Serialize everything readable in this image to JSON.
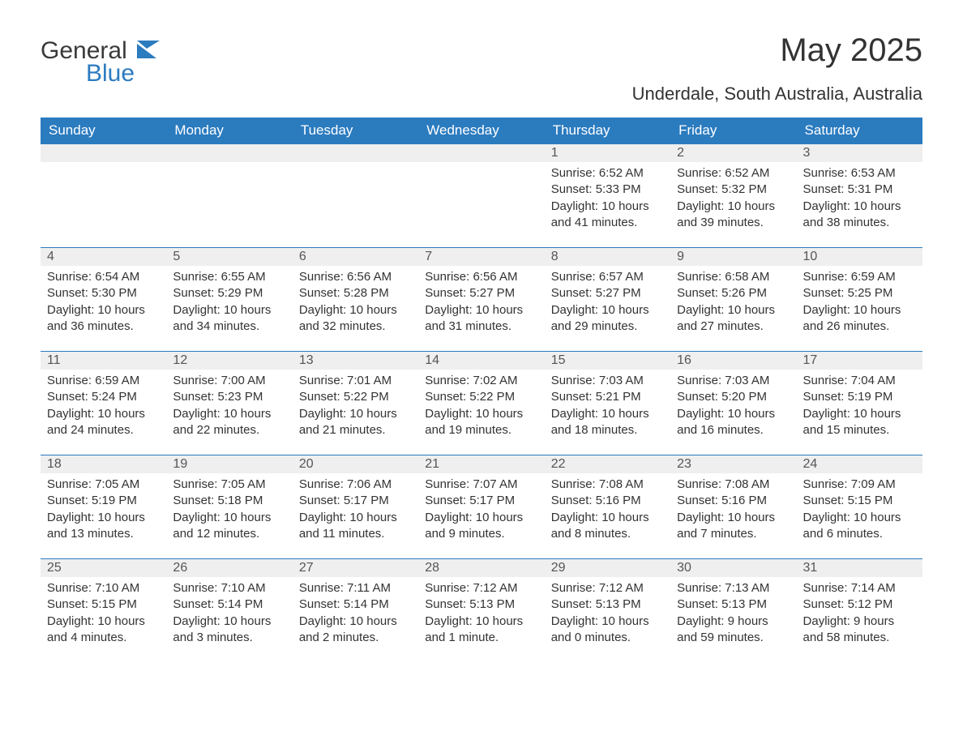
{
  "logo": {
    "text_general": "General",
    "text_blue": "Blue",
    "icon_color": "#2b7bbf"
  },
  "title": "May 2025",
  "location": "Underdale, South Australia, Australia",
  "header_bg": "#2b7bbf",
  "daynum_bg": "#efefef",
  "rule_color": "#2b7bbf",
  "weekdays": [
    "Sunday",
    "Monday",
    "Tuesday",
    "Wednesday",
    "Thursday",
    "Friday",
    "Saturday"
  ],
  "weeks": [
    [
      null,
      null,
      null,
      null,
      {
        "n": "1",
        "sunrise": "6:52 AM",
        "sunset": "5:33 PM",
        "daylight": "10 hours and 41 minutes."
      },
      {
        "n": "2",
        "sunrise": "6:52 AM",
        "sunset": "5:32 PM",
        "daylight": "10 hours and 39 minutes."
      },
      {
        "n": "3",
        "sunrise": "6:53 AM",
        "sunset": "5:31 PM",
        "daylight": "10 hours and 38 minutes."
      }
    ],
    [
      {
        "n": "4",
        "sunrise": "6:54 AM",
        "sunset": "5:30 PM",
        "daylight": "10 hours and 36 minutes."
      },
      {
        "n": "5",
        "sunrise": "6:55 AM",
        "sunset": "5:29 PM",
        "daylight": "10 hours and 34 minutes."
      },
      {
        "n": "6",
        "sunrise": "6:56 AM",
        "sunset": "5:28 PM",
        "daylight": "10 hours and 32 minutes."
      },
      {
        "n": "7",
        "sunrise": "6:56 AM",
        "sunset": "5:27 PM",
        "daylight": "10 hours and 31 minutes."
      },
      {
        "n": "8",
        "sunrise": "6:57 AM",
        "sunset": "5:27 PM",
        "daylight": "10 hours and 29 minutes."
      },
      {
        "n": "9",
        "sunrise": "6:58 AM",
        "sunset": "5:26 PM",
        "daylight": "10 hours and 27 minutes."
      },
      {
        "n": "10",
        "sunrise": "6:59 AM",
        "sunset": "5:25 PM",
        "daylight": "10 hours and 26 minutes."
      }
    ],
    [
      {
        "n": "11",
        "sunrise": "6:59 AM",
        "sunset": "5:24 PM",
        "daylight": "10 hours and 24 minutes."
      },
      {
        "n": "12",
        "sunrise": "7:00 AM",
        "sunset": "5:23 PM",
        "daylight": "10 hours and 22 minutes."
      },
      {
        "n": "13",
        "sunrise": "7:01 AM",
        "sunset": "5:22 PM",
        "daylight": "10 hours and 21 minutes."
      },
      {
        "n": "14",
        "sunrise": "7:02 AM",
        "sunset": "5:22 PM",
        "daylight": "10 hours and 19 minutes."
      },
      {
        "n": "15",
        "sunrise": "7:03 AM",
        "sunset": "5:21 PM",
        "daylight": "10 hours and 18 minutes."
      },
      {
        "n": "16",
        "sunrise": "7:03 AM",
        "sunset": "5:20 PM",
        "daylight": "10 hours and 16 minutes."
      },
      {
        "n": "17",
        "sunrise": "7:04 AM",
        "sunset": "5:19 PM",
        "daylight": "10 hours and 15 minutes."
      }
    ],
    [
      {
        "n": "18",
        "sunrise": "7:05 AM",
        "sunset": "5:19 PM",
        "daylight": "10 hours and 13 minutes."
      },
      {
        "n": "19",
        "sunrise": "7:05 AM",
        "sunset": "5:18 PM",
        "daylight": "10 hours and 12 minutes."
      },
      {
        "n": "20",
        "sunrise": "7:06 AM",
        "sunset": "5:17 PM",
        "daylight": "10 hours and 11 minutes."
      },
      {
        "n": "21",
        "sunrise": "7:07 AM",
        "sunset": "5:17 PM",
        "daylight": "10 hours and 9 minutes."
      },
      {
        "n": "22",
        "sunrise": "7:08 AM",
        "sunset": "5:16 PM",
        "daylight": "10 hours and 8 minutes."
      },
      {
        "n": "23",
        "sunrise": "7:08 AM",
        "sunset": "5:16 PM",
        "daylight": "10 hours and 7 minutes."
      },
      {
        "n": "24",
        "sunrise": "7:09 AM",
        "sunset": "5:15 PM",
        "daylight": "10 hours and 6 minutes."
      }
    ],
    [
      {
        "n": "25",
        "sunrise": "7:10 AM",
        "sunset": "5:15 PM",
        "daylight": "10 hours and 4 minutes."
      },
      {
        "n": "26",
        "sunrise": "7:10 AM",
        "sunset": "5:14 PM",
        "daylight": "10 hours and 3 minutes."
      },
      {
        "n": "27",
        "sunrise": "7:11 AM",
        "sunset": "5:14 PM",
        "daylight": "10 hours and 2 minutes."
      },
      {
        "n": "28",
        "sunrise": "7:12 AM",
        "sunset": "5:13 PM",
        "daylight": "10 hours and 1 minute."
      },
      {
        "n": "29",
        "sunrise": "7:12 AM",
        "sunset": "5:13 PM",
        "daylight": "10 hours and 0 minutes."
      },
      {
        "n": "30",
        "sunrise": "7:13 AM",
        "sunset": "5:13 PM",
        "daylight": "9 hours and 59 minutes."
      },
      {
        "n": "31",
        "sunrise": "7:14 AM",
        "sunset": "5:12 PM",
        "daylight": "9 hours and 58 minutes."
      }
    ]
  ],
  "labels": {
    "sunrise": "Sunrise: ",
    "sunset": "Sunset: ",
    "daylight": "Daylight: "
  }
}
